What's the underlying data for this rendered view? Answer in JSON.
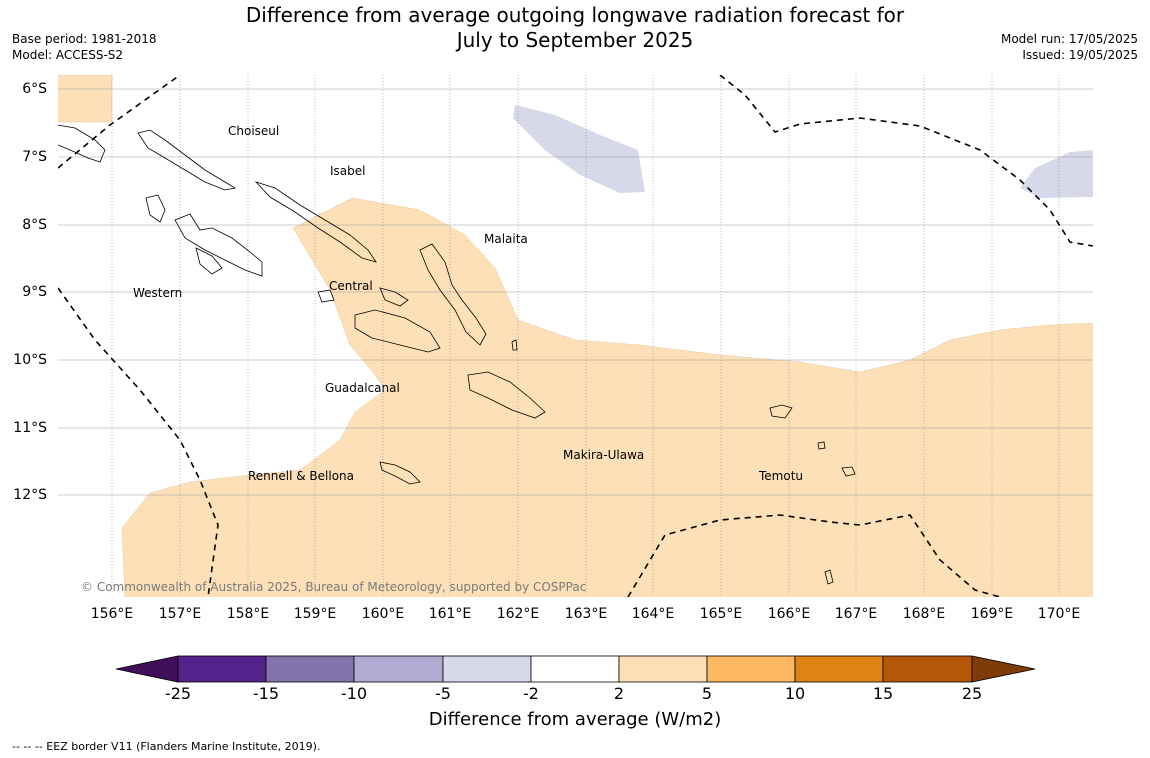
{
  "title_line1": "Difference from average outgoing longwave radiation forecast for",
  "title_line2": "July to September 2025",
  "base_period": "Base period: 1981-2018",
  "model": "Model: ACCESS-S2",
  "model_run": "Model run: 17/05/2025",
  "issued": "Issued: 19/05/2025",
  "lat_labels": [
    "6°S",
    "7°S",
    "8°S",
    "9°S",
    "10°S",
    "11°S",
    "12°S"
  ],
  "lon_labels": [
    "156°E",
    "157°E",
    "158°E",
    "159°E",
    "160°E",
    "161°E",
    "162°E",
    "163°E",
    "164°E",
    "165°E",
    "166°E",
    "167°E",
    "168°E",
    "169°E",
    "170°E"
  ],
  "regions": {
    "choiseul": "Choiseul",
    "isabel": "Isabel",
    "malaita": "Malaita",
    "central": "Central",
    "western": "Western",
    "guadalcanal": "Guadalcanal",
    "makira": "Makira-Ulawa",
    "temotu": "Temotu",
    "rennell": "Rennell & Bellona"
  },
  "copyright": "© Commonwealth of Australia 2025, Bureau of Meteorology, supported by COSPPac",
  "colorbar": {
    "label": "Difference from average (W/m2)",
    "ticks": [
      "-25",
      "-15",
      "-10",
      "-5",
      "-2",
      "2",
      "5",
      "10",
      "15",
      "25"
    ],
    "colors": [
      "#3f0f5c",
      "#54228a",
      "#8273ad",
      "#b1aad2",
      "#d8d8eb",
      "#ffffff",
      "#fde0b7",
      "#fdb863",
      "#e08214",
      "#b35806",
      "#7f3b08"
    ]
  },
  "footnote": "--  --  -- EEZ border V11 (Flanders Marine Institute, 2019)."
}
